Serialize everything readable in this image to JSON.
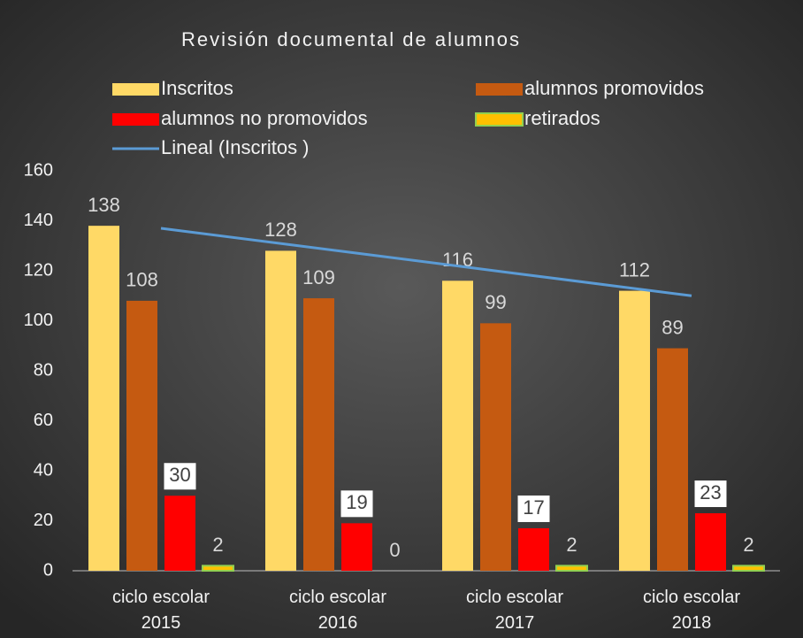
{
  "chart_data": {
    "type": "bar",
    "title": "Revisión documental de alumnos",
    "categories": [
      "ciclo escolar 2015",
      "ciclo escolar 2016",
      "ciclo escolar 2017",
      "ciclo escolar 2018"
    ],
    "series": [
      {
        "name": "Inscritos",
        "color": "#ffd966",
        "values": [
          138,
          128,
          116,
          112
        ]
      },
      {
        "name": "alumnos promovidos",
        "color": "#c55a11",
        "values": [
          108,
          109,
          99,
          89
        ]
      },
      {
        "name": "alumnos no promovidos",
        "color": "#ff0000",
        "label_background": "#ffffff",
        "values": [
          30,
          19,
          17,
          23
        ]
      },
      {
        "name": "retirados",
        "color": "#ffc000",
        "border": "#92d050",
        "values": [
          2,
          0,
          2,
          2
        ]
      },
      {
        "name": "Lineal (Inscritos )",
        "type": "line",
        "color": "#5b9bd5",
        "values": [
          137,
          128,
          119,
          110
        ]
      }
    ],
    "ylim": [
      0,
      160
    ],
    "yticks": [
      0,
      20,
      40,
      60,
      80,
      100,
      120,
      140,
      160
    ],
    "legend": "top",
    "grid": false
  }
}
